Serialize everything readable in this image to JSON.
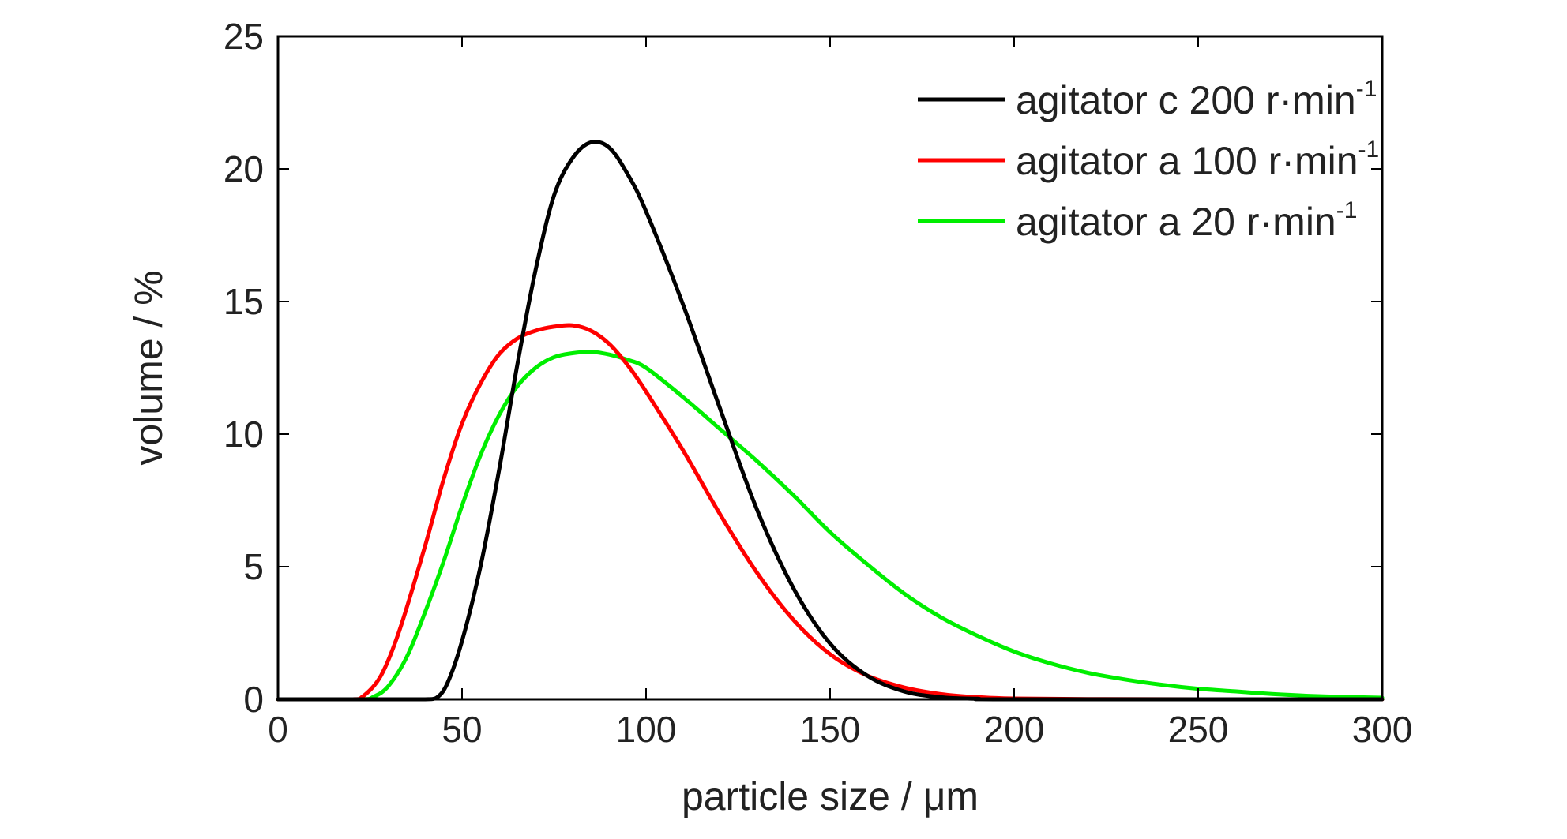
{
  "chart_data": {
    "type": "line",
    "title": "",
    "xlabel": "particle size / μm",
    "ylabel": "volume / %",
    "xlim": [
      0,
      300
    ],
    "ylim": [
      0,
      25
    ],
    "x_ticks": [
      0,
      50,
      100,
      150,
      200,
      250,
      300
    ],
    "y_ticks": [
      0,
      5,
      10,
      15,
      20,
      25
    ],
    "grid": false,
    "legend_position": "top-right",
    "series": [
      {
        "name": "agitator c 200 r·min",
        "name_sup": "-1",
        "color": "#000000",
        "points": [
          [
            0,
            0
          ],
          [
            30,
            0
          ],
          [
            40,
            0
          ],
          [
            43,
            0.05
          ],
          [
            46,
            0.6
          ],
          [
            50,
            2.2
          ],
          [
            55,
            5.0
          ],
          [
            60,
            8.6
          ],
          [
            65,
            12.6
          ],
          [
            70,
            16.2
          ],
          [
            75,
            19.0
          ],
          [
            80,
            20.4
          ],
          [
            85,
            21.0
          ],
          [
            90,
            20.8
          ],
          [
            95,
            19.8
          ],
          [
            100,
            18.4
          ],
          [
            110,
            14.9
          ],
          [
            120,
            11.0
          ],
          [
            130,
            7.2
          ],
          [
            140,
            4.2
          ],
          [
            150,
            2.1
          ],
          [
            160,
            0.9
          ],
          [
            170,
            0.3
          ],
          [
            180,
            0.08
          ],
          [
            190,
            0.02
          ],
          [
            200,
            0
          ],
          [
            300,
            0
          ]
        ]
      },
      {
        "name": "agitator a 100 r·min",
        "name_sup": "-1",
        "color": "#ff0000",
        "points": [
          [
            0,
            0
          ],
          [
            20,
            0
          ],
          [
            23,
            0.1
          ],
          [
            28,
            0.9
          ],
          [
            33,
            2.6
          ],
          [
            40,
            5.8
          ],
          [
            45,
            8.3
          ],
          [
            50,
            10.4
          ],
          [
            55,
            11.9
          ],
          [
            60,
            13.0
          ],
          [
            65,
            13.6
          ],
          [
            70,
            13.9
          ],
          [
            75,
            14.05
          ],
          [
            80,
            14.1
          ],
          [
            85,
            13.9
          ],
          [
            90,
            13.4
          ],
          [
            95,
            12.6
          ],
          [
            100,
            11.6
          ],
          [
            110,
            9.4
          ],
          [
            120,
            7.0
          ],
          [
            130,
            4.8
          ],
          [
            140,
            3.0
          ],
          [
            150,
            1.7
          ],
          [
            160,
            0.9
          ],
          [
            170,
            0.45
          ],
          [
            180,
            0.2
          ],
          [
            190,
            0.08
          ],
          [
            200,
            0.03
          ],
          [
            220,
            0.01
          ],
          [
            250,
            0
          ],
          [
            300,
            0
          ]
        ]
      },
      {
        "name": "agitator a 20 r·min",
        "name_sup": "-1",
        "color": "#00ee00",
        "points": [
          [
            0,
            0
          ],
          [
            22,
            0
          ],
          [
            26,
            0.1
          ],
          [
            30,
            0.5
          ],
          [
            35,
            1.6
          ],
          [
            40,
            3.3
          ],
          [
            45,
            5.2
          ],
          [
            50,
            7.3
          ],
          [
            55,
            9.2
          ],
          [
            60,
            10.7
          ],
          [
            65,
            11.8
          ],
          [
            70,
            12.5
          ],
          [
            75,
            12.9
          ],
          [
            80,
            13.05
          ],
          [
            85,
            13.1
          ],
          [
            90,
            13.0
          ],
          [
            95,
            12.8
          ],
          [
            100,
            12.5
          ],
          [
            110,
            11.4
          ],
          [
            120,
            10.2
          ],
          [
            130,
            9.0
          ],
          [
            140,
            7.7
          ],
          [
            150,
            6.3
          ],
          [
            160,
            5.1
          ],
          [
            170,
            4.0
          ],
          [
            180,
            3.1
          ],
          [
            190,
            2.4
          ],
          [
            200,
            1.8
          ],
          [
            210,
            1.35
          ],
          [
            220,
            1.0
          ],
          [
            230,
            0.75
          ],
          [
            240,
            0.55
          ],
          [
            250,
            0.4
          ],
          [
            260,
            0.3
          ],
          [
            270,
            0.2
          ],
          [
            280,
            0.13
          ],
          [
            290,
            0.09
          ],
          [
            300,
            0.06
          ]
        ]
      }
    ]
  }
}
